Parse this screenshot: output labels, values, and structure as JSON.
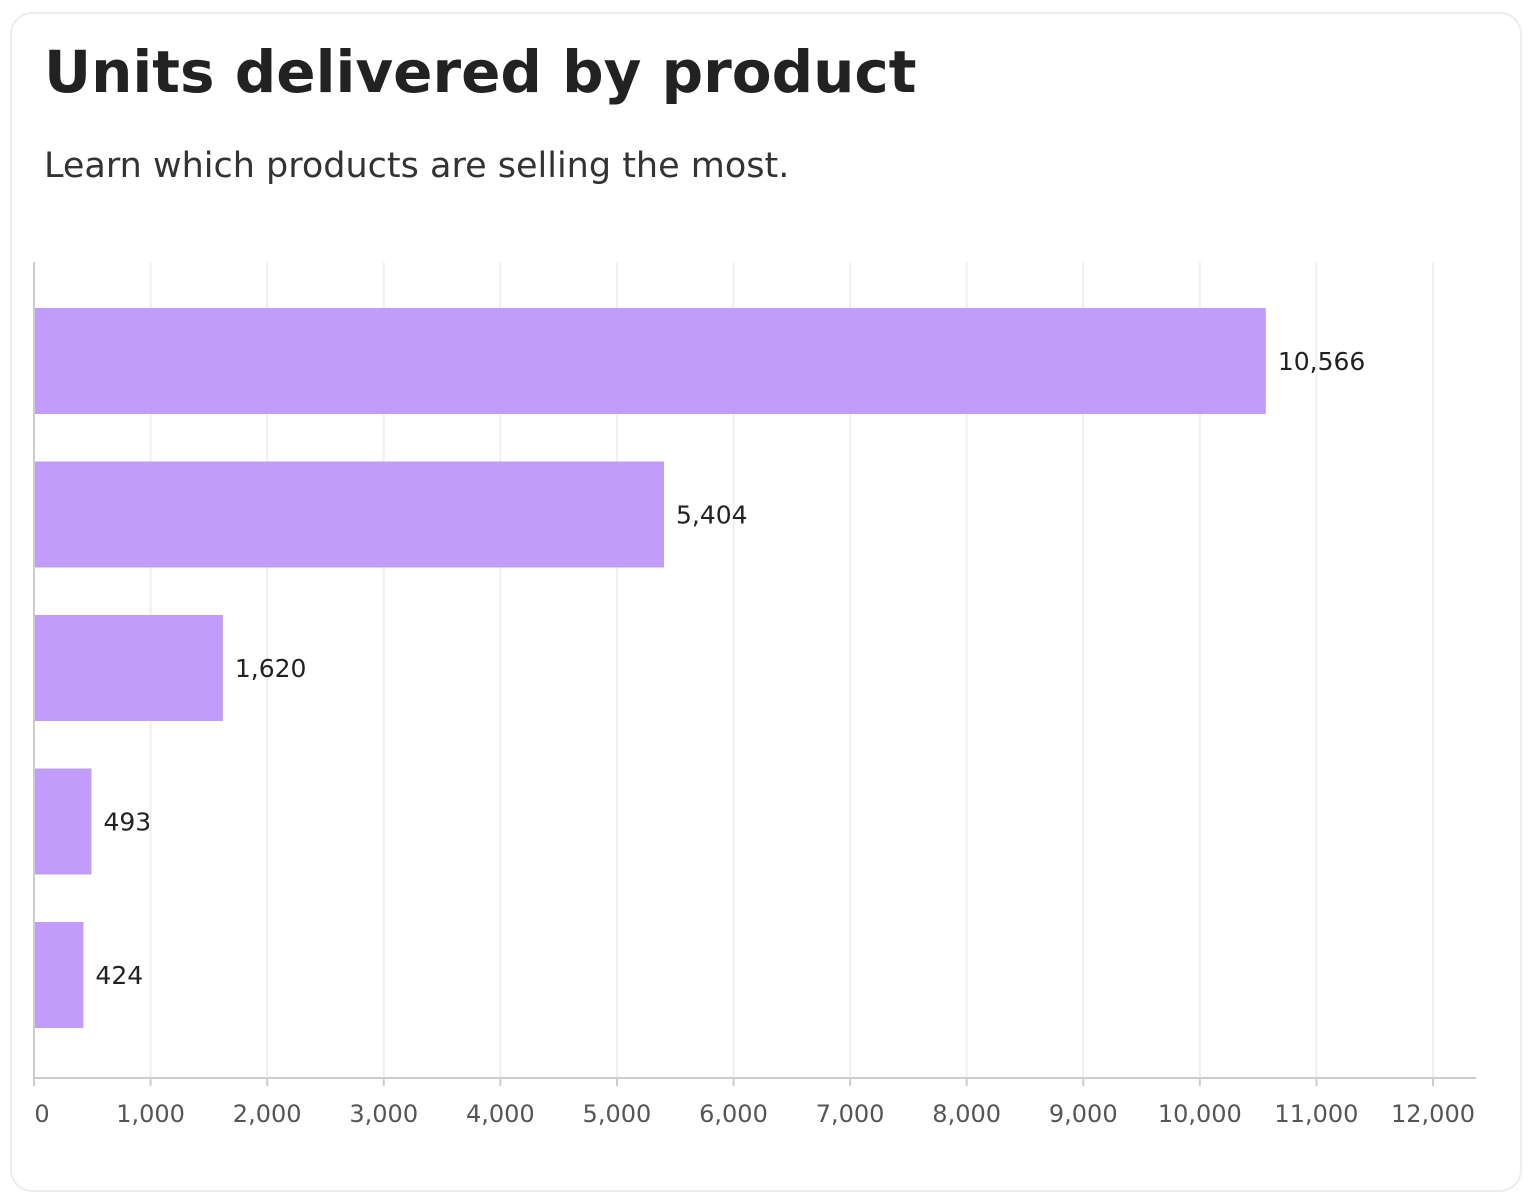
{
  "card": {
    "title": "Units delivered by product",
    "subtitle": "Learn which products are selling the most."
  },
  "chart_data": {
    "type": "bar",
    "orientation": "horizontal",
    "title": "Units delivered by product",
    "subtitle": "Learn which products are selling the most.",
    "xlabel": "",
    "ylabel": "",
    "values": [
      10566,
      5404,
      1620,
      493,
      424
    ],
    "value_labels": [
      "10,566",
      "5,404",
      "1,620",
      "493",
      "424"
    ],
    "xlim": [
      0,
      12000
    ],
    "x_ticks": [
      0,
      1000,
      2000,
      3000,
      4000,
      5000,
      6000,
      7000,
      8000,
      9000,
      10000,
      11000,
      12000
    ],
    "x_tick_labels": [
      "0",
      "1,000",
      "2,000",
      "3,000",
      "4,000",
      "5,000",
      "6,000",
      "7,000",
      "8,000",
      "9,000",
      "10,000",
      "11,000",
      "12,000"
    ],
    "grid": true,
    "legend": "none",
    "bar_color": "#c29cfa",
    "grid_color": "#efefef",
    "axis_color": "#cccccc"
  }
}
